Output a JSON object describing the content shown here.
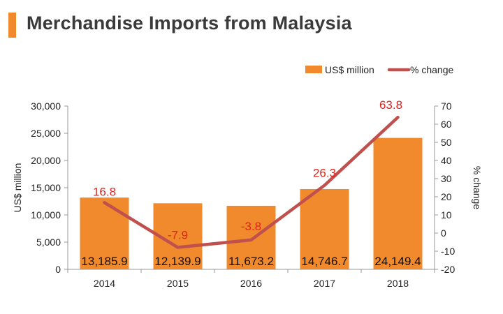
{
  "title": "Merchandise Imports from Malaysia",
  "colors": {
    "accent": "#f08a2c",
    "bar": "#f08a2c",
    "line": "#c0504d",
    "pct_label": "#e0231c",
    "axis": "#999999"
  },
  "chart_data": {
    "type": "bar",
    "categories": [
      "2014",
      "2015",
      "2016",
      "2017",
      "2018"
    ],
    "series": [
      {
        "name": "US$ million",
        "type": "bar",
        "axis": "left",
        "values": [
          13185.9,
          12139.9,
          11673.2,
          14746.7,
          24149.4
        ],
        "labels": [
          "13,185.9",
          "12,139.9",
          "11,673.2",
          "14,746.7",
          "24,149.4"
        ]
      },
      {
        "name": "% change",
        "type": "line",
        "axis": "right",
        "values": [
          16.8,
          -7.9,
          -3.8,
          26.3,
          63.8
        ],
        "labels": [
          "16.8",
          "-7.9",
          "-3.8",
          "26.3",
          "63.8"
        ]
      }
    ],
    "ylabel": "US$ million",
    "ylabel_right": "% change",
    "ylim": [
      0,
      30000
    ],
    "ylim_right": [
      -20,
      70
    ],
    "yticks": [
      "0",
      "5,000",
      "10,000",
      "15,000",
      "20,000",
      "25,000",
      "30,000"
    ],
    "yticks_right": [
      "-20",
      "-10",
      "0",
      "10",
      "20",
      "30",
      "40",
      "50",
      "60",
      "70"
    ],
    "grid": false,
    "legend_position": "top-right"
  }
}
